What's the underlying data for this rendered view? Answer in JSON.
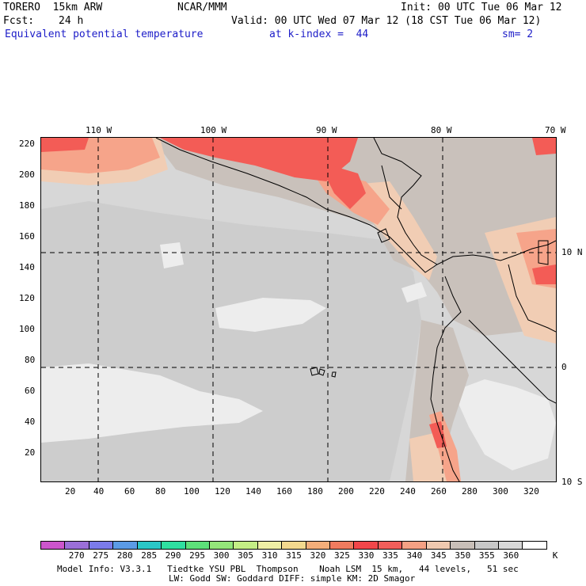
{
  "header": {
    "model": "TORERO  15km ARW",
    "org": "NCAR/MMM",
    "init": "Init: 00 UTC Tue 06 Mar 12",
    "fcst_label": "Fcst:",
    "fcst_value": "24 h",
    "valid": "Valid: 00 UTC Wed 07 Mar 12 (18 CST Tue 06 Mar 12)",
    "field": "Equivalent potential temperature",
    "level": "at k-index =  44",
    "smooth": "sm= 2"
  },
  "map": {
    "lon_labels": [
      "110 W",
      "100 W",
      "90 W",
      "80 W",
      "70 W"
    ],
    "lat_labels": [
      "10 N",
      "0",
      "10 S"
    ],
    "y_ticks": [
      "220",
      "200",
      "180",
      "160",
      "140",
      "120",
      "100",
      "80",
      "60",
      "40",
      "20"
    ],
    "x_ticks": [
      "20",
      "40",
      "60",
      "80",
      "100",
      "120",
      "140",
      "160",
      "180",
      "200",
      "220",
      "240",
      "260",
      "280",
      "300",
      "320"
    ],
    "fill_colors": {
      "base": "#d7d7d7",
      "cooler": "#cdcdcd",
      "coolest": "#ededed",
      "warm": "#c9c1bb",
      "warmer": "#f1cdb4",
      "hot": "#f6a48a",
      "hottest": "#f35c56"
    }
  },
  "colorbar": {
    "colors": [
      "#cc55cc",
      "#9b6fd8",
      "#7b7bea",
      "#5b9be6",
      "#2bc7c7",
      "#2fdfa0",
      "#5de07a",
      "#94e67a",
      "#c4ee85",
      "#efefa5",
      "#f3d98e",
      "#f3ae7a",
      "#f07b5f",
      "#f2464a",
      "#f15e5a",
      "#f5a184",
      "#f0c9b0",
      "#c8bfb8",
      "#c8c8c8",
      "#d9d9d9",
      "#ffffff"
    ],
    "labels": [
      "270",
      "275",
      "280",
      "285",
      "290",
      "295",
      "300",
      "305",
      "310",
      "315",
      "320",
      "325",
      "330",
      "335",
      "340",
      "345",
      "350",
      "355",
      "360"
    ],
    "unit": "K"
  },
  "footer": {
    "line1": "Model Info: V3.3.1   Tiedtke YSU PBL  Thompson    Noah LSM  15 km,   44 levels,   51 sec",
    "line2": "LW: Godd SW: Goddard DIFF: simple KM: 2D Smagor"
  }
}
